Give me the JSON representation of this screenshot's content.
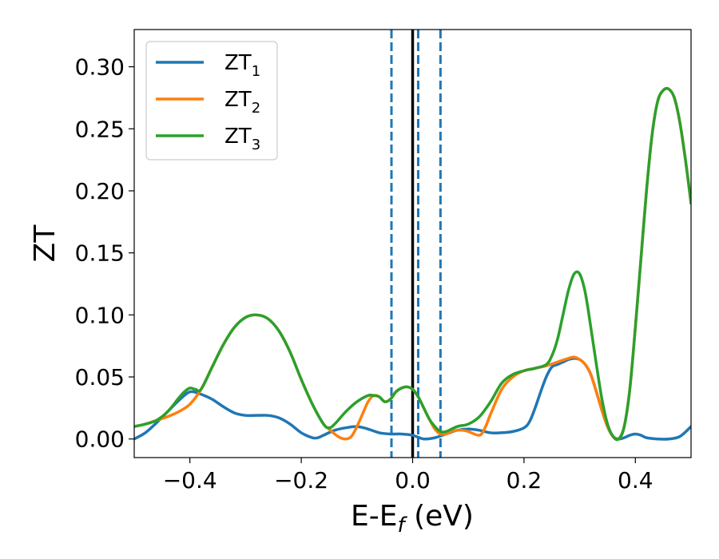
{
  "chart_data": {
    "type": "line",
    "title": "",
    "xlabel": "E-E",
    "xlabel_sub": "f",
    "xlabel_unit": " (eV)",
    "ylabel": "ZT",
    "xlim": [
      -0.5,
      0.5
    ],
    "ylim": [
      -0.015,
      0.33
    ],
    "xticks": [
      -0.4,
      -0.2,
      0.0,
      0.2,
      0.4
    ],
    "xtick_labels": [
      "−0.4",
      "−0.2",
      "0.0",
      "0.2",
      "0.4"
    ],
    "yticks": [
      0.0,
      0.05,
      0.1,
      0.15,
      0.2,
      0.25,
      0.3
    ],
    "ytick_labels": [
      "0.00",
      "0.05",
      "0.10",
      "0.15",
      "0.20",
      "0.25",
      "0.30"
    ],
    "grid": false,
    "legend_position": "top-left",
    "vlines": [
      {
        "x": 0.0,
        "color": "#000000",
        "style": "solid"
      },
      {
        "x": -0.038,
        "color": "#1f77b4",
        "style": "dashed"
      },
      {
        "x": 0.01,
        "color": "#1f77b4",
        "style": "dashed"
      },
      {
        "x": 0.05,
        "color": "#1f77b4",
        "style": "dashed"
      }
    ],
    "series": [
      {
        "name": "ZT",
        "name_sub": "1",
        "color": "#1f77b4",
        "points": [
          [
            -0.5,
            0.0
          ],
          [
            -0.48,
            0.005
          ],
          [
            -0.46,
            0.013
          ],
          [
            -0.44,
            0.022
          ],
          [
            -0.42,
            0.031
          ],
          [
            -0.4,
            0.038
          ],
          [
            -0.38,
            0.036
          ],
          [
            -0.36,
            0.032
          ],
          [
            -0.34,
            0.026
          ],
          [
            -0.32,
            0.021
          ],
          [
            -0.3,
            0.019
          ],
          [
            -0.28,
            0.019
          ],
          [
            -0.26,
            0.019
          ],
          [
            -0.24,
            0.017
          ],
          [
            -0.22,
            0.012
          ],
          [
            -0.2,
            0.005
          ],
          [
            -0.18,
            0.001
          ],
          [
            -0.17,
            0.001
          ],
          [
            -0.16,
            0.003
          ],
          [
            -0.14,
            0.007
          ],
          [
            -0.12,
            0.009
          ],
          [
            -0.1,
            0.01
          ],
          [
            -0.08,
            0.008
          ],
          [
            -0.06,
            0.005
          ],
          [
            -0.04,
            0.004
          ],
          [
            -0.02,
            0.004
          ],
          [
            0.0,
            0.003
          ],
          [
            0.02,
            0.0
          ],
          [
            0.04,
            0.001
          ],
          [
            0.06,
            0.004
          ],
          [
            0.08,
            0.007
          ],
          [
            0.1,
            0.008
          ],
          [
            0.12,
            0.007
          ],
          [
            0.14,
            0.005
          ],
          [
            0.16,
            0.005
          ],
          [
            0.18,
            0.006
          ],
          [
            0.2,
            0.009
          ],
          [
            0.21,
            0.014
          ],
          [
            0.22,
            0.025
          ],
          [
            0.23,
            0.038
          ],
          [
            0.24,
            0.05
          ],
          [
            0.25,
            0.058
          ],
          [
            0.26,
            0.06
          ],
          [
            0.27,
            0.062
          ],
          [
            0.28,
            0.064
          ],
          [
            0.29,
            0.065
          ],
          [
            0.3,
            0.064
          ],
          [
            0.31,
            0.06
          ],
          [
            0.32,
            0.052
          ],
          [
            0.33,
            0.038
          ],
          [
            0.34,
            0.023
          ],
          [
            0.35,
            0.01
          ],
          [
            0.36,
            0.002
          ],
          [
            0.37,
            0.0
          ],
          [
            0.38,
            0.001
          ],
          [
            0.39,
            0.003
          ],
          [
            0.4,
            0.004
          ],
          [
            0.41,
            0.003
          ],
          [
            0.42,
            0.001
          ],
          [
            0.44,
            0.0
          ],
          [
            0.46,
            0.0
          ],
          [
            0.48,
            0.002
          ],
          [
            0.5,
            0.01
          ]
        ]
      },
      {
        "name": "ZT",
        "name_sub": "2",
        "color": "#ff7f0e",
        "points": [
          [
            -0.5,
            0.01
          ],
          [
            -0.48,
            0.012
          ],
          [
            -0.46,
            0.015
          ],
          [
            -0.44,
            0.018
          ],
          [
            -0.42,
            0.022
          ],
          [
            -0.4,
            0.028
          ],
          [
            -0.38,
            0.04
          ],
          [
            -0.36,
            0.058
          ],
          [
            -0.34,
            0.076
          ],
          [
            -0.32,
            0.09
          ],
          [
            -0.3,
            0.098
          ],
          [
            -0.28,
            0.1
          ],
          [
            -0.26,
            0.097
          ],
          [
            -0.24,
            0.087
          ],
          [
            -0.22,
            0.07
          ],
          [
            -0.2,
            0.048
          ],
          [
            -0.18,
            0.028
          ],
          [
            -0.16,
            0.012
          ],
          [
            -0.15,
            0.008
          ],
          [
            -0.14,
            0.004
          ],
          [
            -0.13,
            0.001
          ],
          [
            -0.12,
            0.0
          ],
          [
            -0.11,
            0.002
          ],
          [
            -0.1,
            0.01
          ],
          [
            -0.09,
            0.02
          ],
          [
            -0.08,
            0.03
          ],
          [
            -0.07,
            0.035
          ],
          [
            -0.06,
            0.034
          ],
          [
            -0.05,
            0.03
          ],
          [
            -0.04,
            0.032
          ],
          [
            -0.03,
            0.038
          ],
          [
            -0.02,
            0.041
          ],
          [
            -0.01,
            0.042
          ],
          [
            0.0,
            0.04
          ],
          [
            0.01,
            0.034
          ],
          [
            0.02,
            0.025
          ],
          [
            0.03,
            0.016
          ],
          [
            0.04,
            0.008
          ],
          [
            0.05,
            0.004
          ],
          [
            0.06,
            0.004
          ],
          [
            0.07,
            0.006
          ],
          [
            0.08,
            0.007
          ],
          [
            0.09,
            0.007
          ],
          [
            0.1,
            0.006
          ],
          [
            0.12,
            0.003
          ],
          [
            0.13,
            0.009
          ],
          [
            0.14,
            0.02
          ],
          [
            0.16,
            0.04
          ],
          [
            0.18,
            0.05
          ],
          [
            0.2,
            0.055
          ],
          [
            0.22,
            0.057
          ],
          [
            0.24,
            0.059
          ],
          [
            0.26,
            0.062
          ],
          [
            0.28,
            0.065
          ],
          [
            0.29,
            0.066
          ],
          [
            0.3,
            0.064
          ],
          [
            0.31,
            0.06
          ],
          [
            0.32,
            0.052
          ],
          [
            0.33,
            0.038
          ],
          [
            0.34,
            0.023
          ],
          [
            0.35,
            0.01
          ],
          [
            0.36,
            0.002
          ],
          [
            0.37,
            0.0
          ],
          [
            0.38,
            0.01
          ],
          [
            0.39,
            0.04
          ],
          [
            0.4,
            0.09
          ],
          [
            0.41,
            0.145
          ],
          [
            0.42,
            0.2
          ],
          [
            0.43,
            0.245
          ],
          [
            0.44,
            0.272
          ],
          [
            0.45,
            0.281
          ],
          [
            0.46,
            0.282
          ],
          [
            0.47,
            0.275
          ],
          [
            0.48,
            0.255
          ],
          [
            0.49,
            0.225
          ],
          [
            0.5,
            0.19
          ]
        ]
      },
      {
        "name": "ZT",
        "name_sub": "3",
        "color": "#2ca02c",
        "points": [
          [
            -0.5,
            0.01
          ],
          [
            -0.48,
            0.012
          ],
          [
            -0.46,
            0.015
          ],
          [
            -0.44,
            0.022
          ],
          [
            -0.42,
            0.033
          ],
          [
            -0.41,
            0.038
          ],
          [
            -0.4,
            0.041
          ],
          [
            -0.39,
            0.04
          ],
          [
            -0.38,
            0.04
          ],
          [
            -0.36,
            0.058
          ],
          [
            -0.34,
            0.076
          ],
          [
            -0.32,
            0.09
          ],
          [
            -0.3,
            0.098
          ],
          [
            -0.28,
            0.1
          ],
          [
            -0.26,
            0.097
          ],
          [
            -0.24,
            0.087
          ],
          [
            -0.22,
            0.07
          ],
          [
            -0.2,
            0.048
          ],
          [
            -0.18,
            0.028
          ],
          [
            -0.16,
            0.012
          ],
          [
            -0.15,
            0.009
          ],
          [
            -0.14,
            0.012
          ],
          [
            -0.12,
            0.022
          ],
          [
            -0.1,
            0.03
          ],
          [
            -0.08,
            0.035
          ],
          [
            -0.07,
            0.035
          ],
          [
            -0.06,
            0.034
          ],
          [
            -0.05,
            0.03
          ],
          [
            -0.04,
            0.032
          ],
          [
            -0.03,
            0.038
          ],
          [
            -0.02,
            0.041
          ],
          [
            -0.01,
            0.042
          ],
          [
            0.0,
            0.04
          ],
          [
            0.01,
            0.034
          ],
          [
            0.02,
            0.025
          ],
          [
            0.03,
            0.016
          ],
          [
            0.04,
            0.01
          ],
          [
            0.05,
            0.006
          ],
          [
            0.06,
            0.006
          ],
          [
            0.08,
            0.01
          ],
          [
            0.1,
            0.012
          ],
          [
            0.12,
            0.018
          ],
          [
            0.14,
            0.03
          ],
          [
            0.16,
            0.045
          ],
          [
            0.18,
            0.052
          ],
          [
            0.2,
            0.055
          ],
          [
            0.22,
            0.057
          ],
          [
            0.24,
            0.06
          ],
          [
            0.25,
            0.067
          ],
          [
            0.26,
            0.08
          ],
          [
            0.27,
            0.1
          ],
          [
            0.28,
            0.12
          ],
          [
            0.29,
            0.133
          ],
          [
            0.3,
            0.133
          ],
          [
            0.31,
            0.118
          ],
          [
            0.32,
            0.09
          ],
          [
            0.33,
            0.06
          ],
          [
            0.34,
            0.032
          ],
          [
            0.35,
            0.012
          ],
          [
            0.36,
            0.002
          ],
          [
            0.37,
            0.0
          ],
          [
            0.38,
            0.01
          ],
          [
            0.39,
            0.04
          ],
          [
            0.4,
            0.09
          ],
          [
            0.41,
            0.145
          ],
          [
            0.42,
            0.2
          ],
          [
            0.43,
            0.245
          ],
          [
            0.44,
            0.272
          ],
          [
            0.45,
            0.281
          ],
          [
            0.46,
            0.282
          ],
          [
            0.47,
            0.275
          ],
          [
            0.48,
            0.255
          ],
          [
            0.49,
            0.225
          ],
          [
            0.5,
            0.19
          ]
        ]
      }
    ]
  }
}
